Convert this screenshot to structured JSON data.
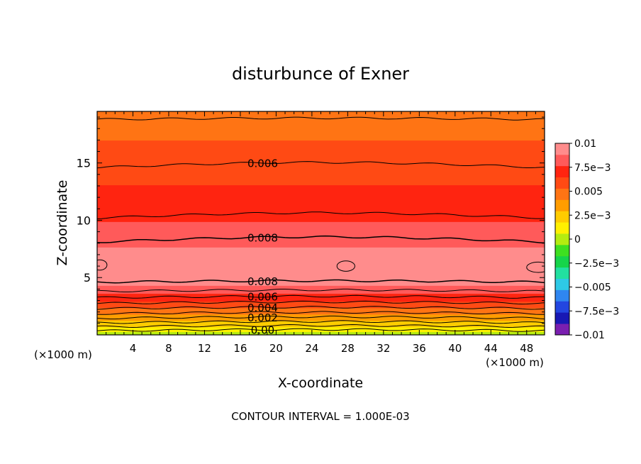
{
  "chart_data": {
    "type": "heatmap",
    "title": "disturbunce of Exner",
    "xlabel": "X-coordinate",
    "ylabel": "Z-coordinate",
    "x_unit_left": "(×1000 m)",
    "x_unit_right": "(×1000 m)",
    "footer": "CONTOUR INTERVAL = 1.000E-03",
    "xlim": [
      0,
      50
    ],
    "ylim": [
      0,
      19.5
    ],
    "x_ticks": [
      {
        "value": 4,
        "label": "4"
      },
      {
        "value": 8,
        "label": "8"
      },
      {
        "value": 12,
        "label": "12"
      },
      {
        "value": 16,
        "label": "16"
      },
      {
        "value": 20,
        "label": "20"
      },
      {
        "value": 24,
        "label": "24"
      },
      {
        "value": 28,
        "label": "28"
      },
      {
        "value": 32,
        "label": "32"
      },
      {
        "value": 36,
        "label": "36"
      },
      {
        "value": 40,
        "label": "40"
      },
      {
        "value": 44,
        "label": "44"
      },
      {
        "value": 48,
        "label": "48"
      }
    ],
    "y_ticks": [
      {
        "value": 5,
        "label": "5"
      },
      {
        "value": 10,
        "label": "10"
      },
      {
        "value": 15,
        "label": "15"
      }
    ],
    "colorbar": {
      "range": [
        -0.01,
        0.01
      ],
      "ticks": [
        {
          "value": 0.01,
          "label": "0.01"
        },
        {
          "value": 0.0075,
          "label": "7.5e−3"
        },
        {
          "value": 0.005,
          "label": "0.005"
        },
        {
          "value": 0.0025,
          "label": "2.5e−3"
        },
        {
          "value": 0,
          "label": "0"
        },
        {
          "value": -0.0025,
          "label": "−2.5e−3"
        },
        {
          "value": -0.005,
          "label": "−0.005"
        },
        {
          "value": -0.0075,
          "label": "−7.5e−3"
        },
        {
          "value": -0.01,
          "label": "−0.01"
        }
      ],
      "colors": [
        "#7a1fb0",
        "#1818b4",
        "#2346e0",
        "#2f86f0",
        "#2ec9e6",
        "#22e0a0",
        "#16d44a",
        "#3ee020",
        "#b4ec10",
        "#fff000",
        "#ffcc00",
        "#ff9d00",
        "#ff7414",
        "#ff4a14",
        "#ff2410",
        "#ff5a5a",
        "#ff8c8c"
      ]
    },
    "profile": {
      "z": [
        0,
        0.5,
        1.0,
        1.5,
        2.0,
        2.5,
        3.0,
        3.5,
        4.0,
        4.5,
        5.0,
        5.5,
        6.0,
        6.5,
        7.0,
        8.0,
        9.0,
        10.0,
        11.0,
        12.0,
        13.0,
        14.0,
        15.0,
        16.0,
        17.0,
        18.0,
        19.0,
        19.5
      ],
      "value": [
        0.0,
        0.0012,
        0.0023,
        0.0034,
        0.0045,
        0.0056,
        0.0066,
        0.0075,
        0.0083,
        0.009,
        0.0093,
        0.0095,
        0.0096,
        0.0095,
        0.0093,
        0.0085,
        0.008,
        0.0076,
        0.0072,
        0.0068,
        0.0065,
        0.0062,
        0.0059,
        0.0056,
        0.0053,
        0.005,
        0.0048,
        0.0047
      ]
    },
    "contour_lines": [
      {
        "z": 0.35,
        "label": "0.00"
      },
      {
        "z": 0.7,
        "label": ""
      },
      {
        "z": 1.05,
        "label": ""
      },
      {
        "z": 1.45,
        "label": "0.002"
      },
      {
        "z": 1.85,
        "label": ""
      },
      {
        "z": 2.3,
        "label": "0.004"
      },
      {
        "z": 2.75,
        "label": ""
      },
      {
        "z": 3.25,
        "label": "0.006"
      },
      {
        "z": 3.8,
        "label": ""
      },
      {
        "z": 4.6,
        "label": "0.008"
      },
      {
        "z": 8.1,
        "label": "0.008"
      },
      {
        "z": 10.2,
        "label": ""
      },
      {
        "z": 14.6,
        "label": "0.006"
      },
      {
        "z": 18.8,
        "label": ""
      }
    ],
    "max_blobs": [
      {
        "x": 0.3,
        "z": 6.1,
        "rx": 0.8,
        "rz": 0.45
      },
      {
        "x": 27.8,
        "z": 6.0,
        "rx": 1.0,
        "rz": 0.45
      },
      {
        "x": 49.3,
        "z": 5.9,
        "rx": 1.3,
        "rz": 0.45
      }
    ]
  }
}
